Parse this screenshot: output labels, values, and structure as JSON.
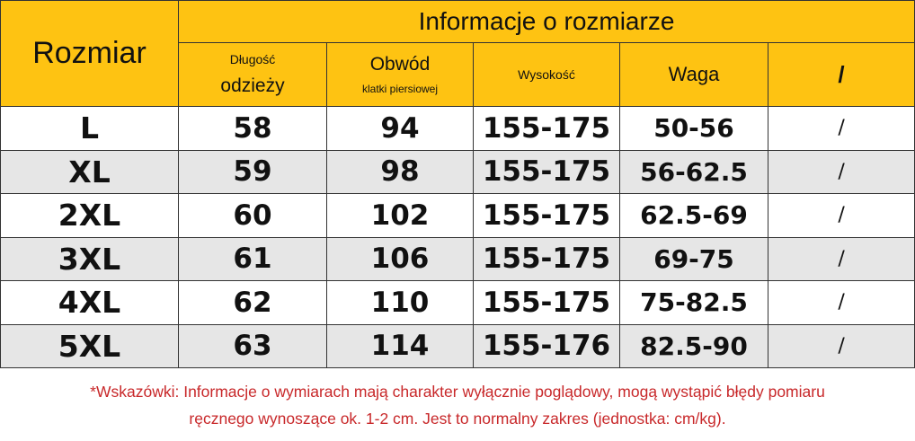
{
  "header": {
    "size_label": "Rozmiar",
    "title": "Informacje o rozmiarze",
    "columns": [
      {
        "line1": "Długość",
        "line2": "odzieży"
      },
      {
        "line1": "Obwód",
        "line2": "klatki piersiowej"
      },
      {
        "line1": "Wysokość"
      },
      {
        "line1": "Waga"
      },
      {
        "line1": "/"
      }
    ]
  },
  "rows": [
    {
      "size": "L",
      "length": "58",
      "chest": "94",
      "height": "155-175",
      "weight": "50-56",
      "extra": "/"
    },
    {
      "size": "XL",
      "length": "59",
      "chest": "98",
      "height": "155-175",
      "weight": "56-62.5",
      "extra": "/"
    },
    {
      "size": "2XL",
      "length": "60",
      "chest": "102",
      "height": "155-175",
      "weight": "62.5-69",
      "extra": "/"
    },
    {
      "size": "3XL",
      "length": "61",
      "chest": "106",
      "height": "155-175",
      "weight": "69-75",
      "extra": "/"
    },
    {
      "size": "4XL",
      "length": "62",
      "chest": "110",
      "height": "155-175",
      "weight": "75-82.5",
      "extra": "/"
    },
    {
      "size": "5XL",
      "length": "63",
      "chest": "114",
      "height": "155-176",
      "weight": "82.5-90",
      "extra": "/"
    }
  ],
  "note": {
    "line1": "*Wskazówki: Informacje o wymiarach mają charakter wyłącznie poglądowy, mogą wystąpić błędy pomiaru",
    "line2": "ręcznego wynoszące ok. 1-2 cm. Jest to normalny zakres (jednostka: cm/kg)."
  },
  "colors": {
    "header_bg": "#fec312",
    "stripe_bg": "#e6e6e6",
    "note_text": "#c8282a"
  }
}
